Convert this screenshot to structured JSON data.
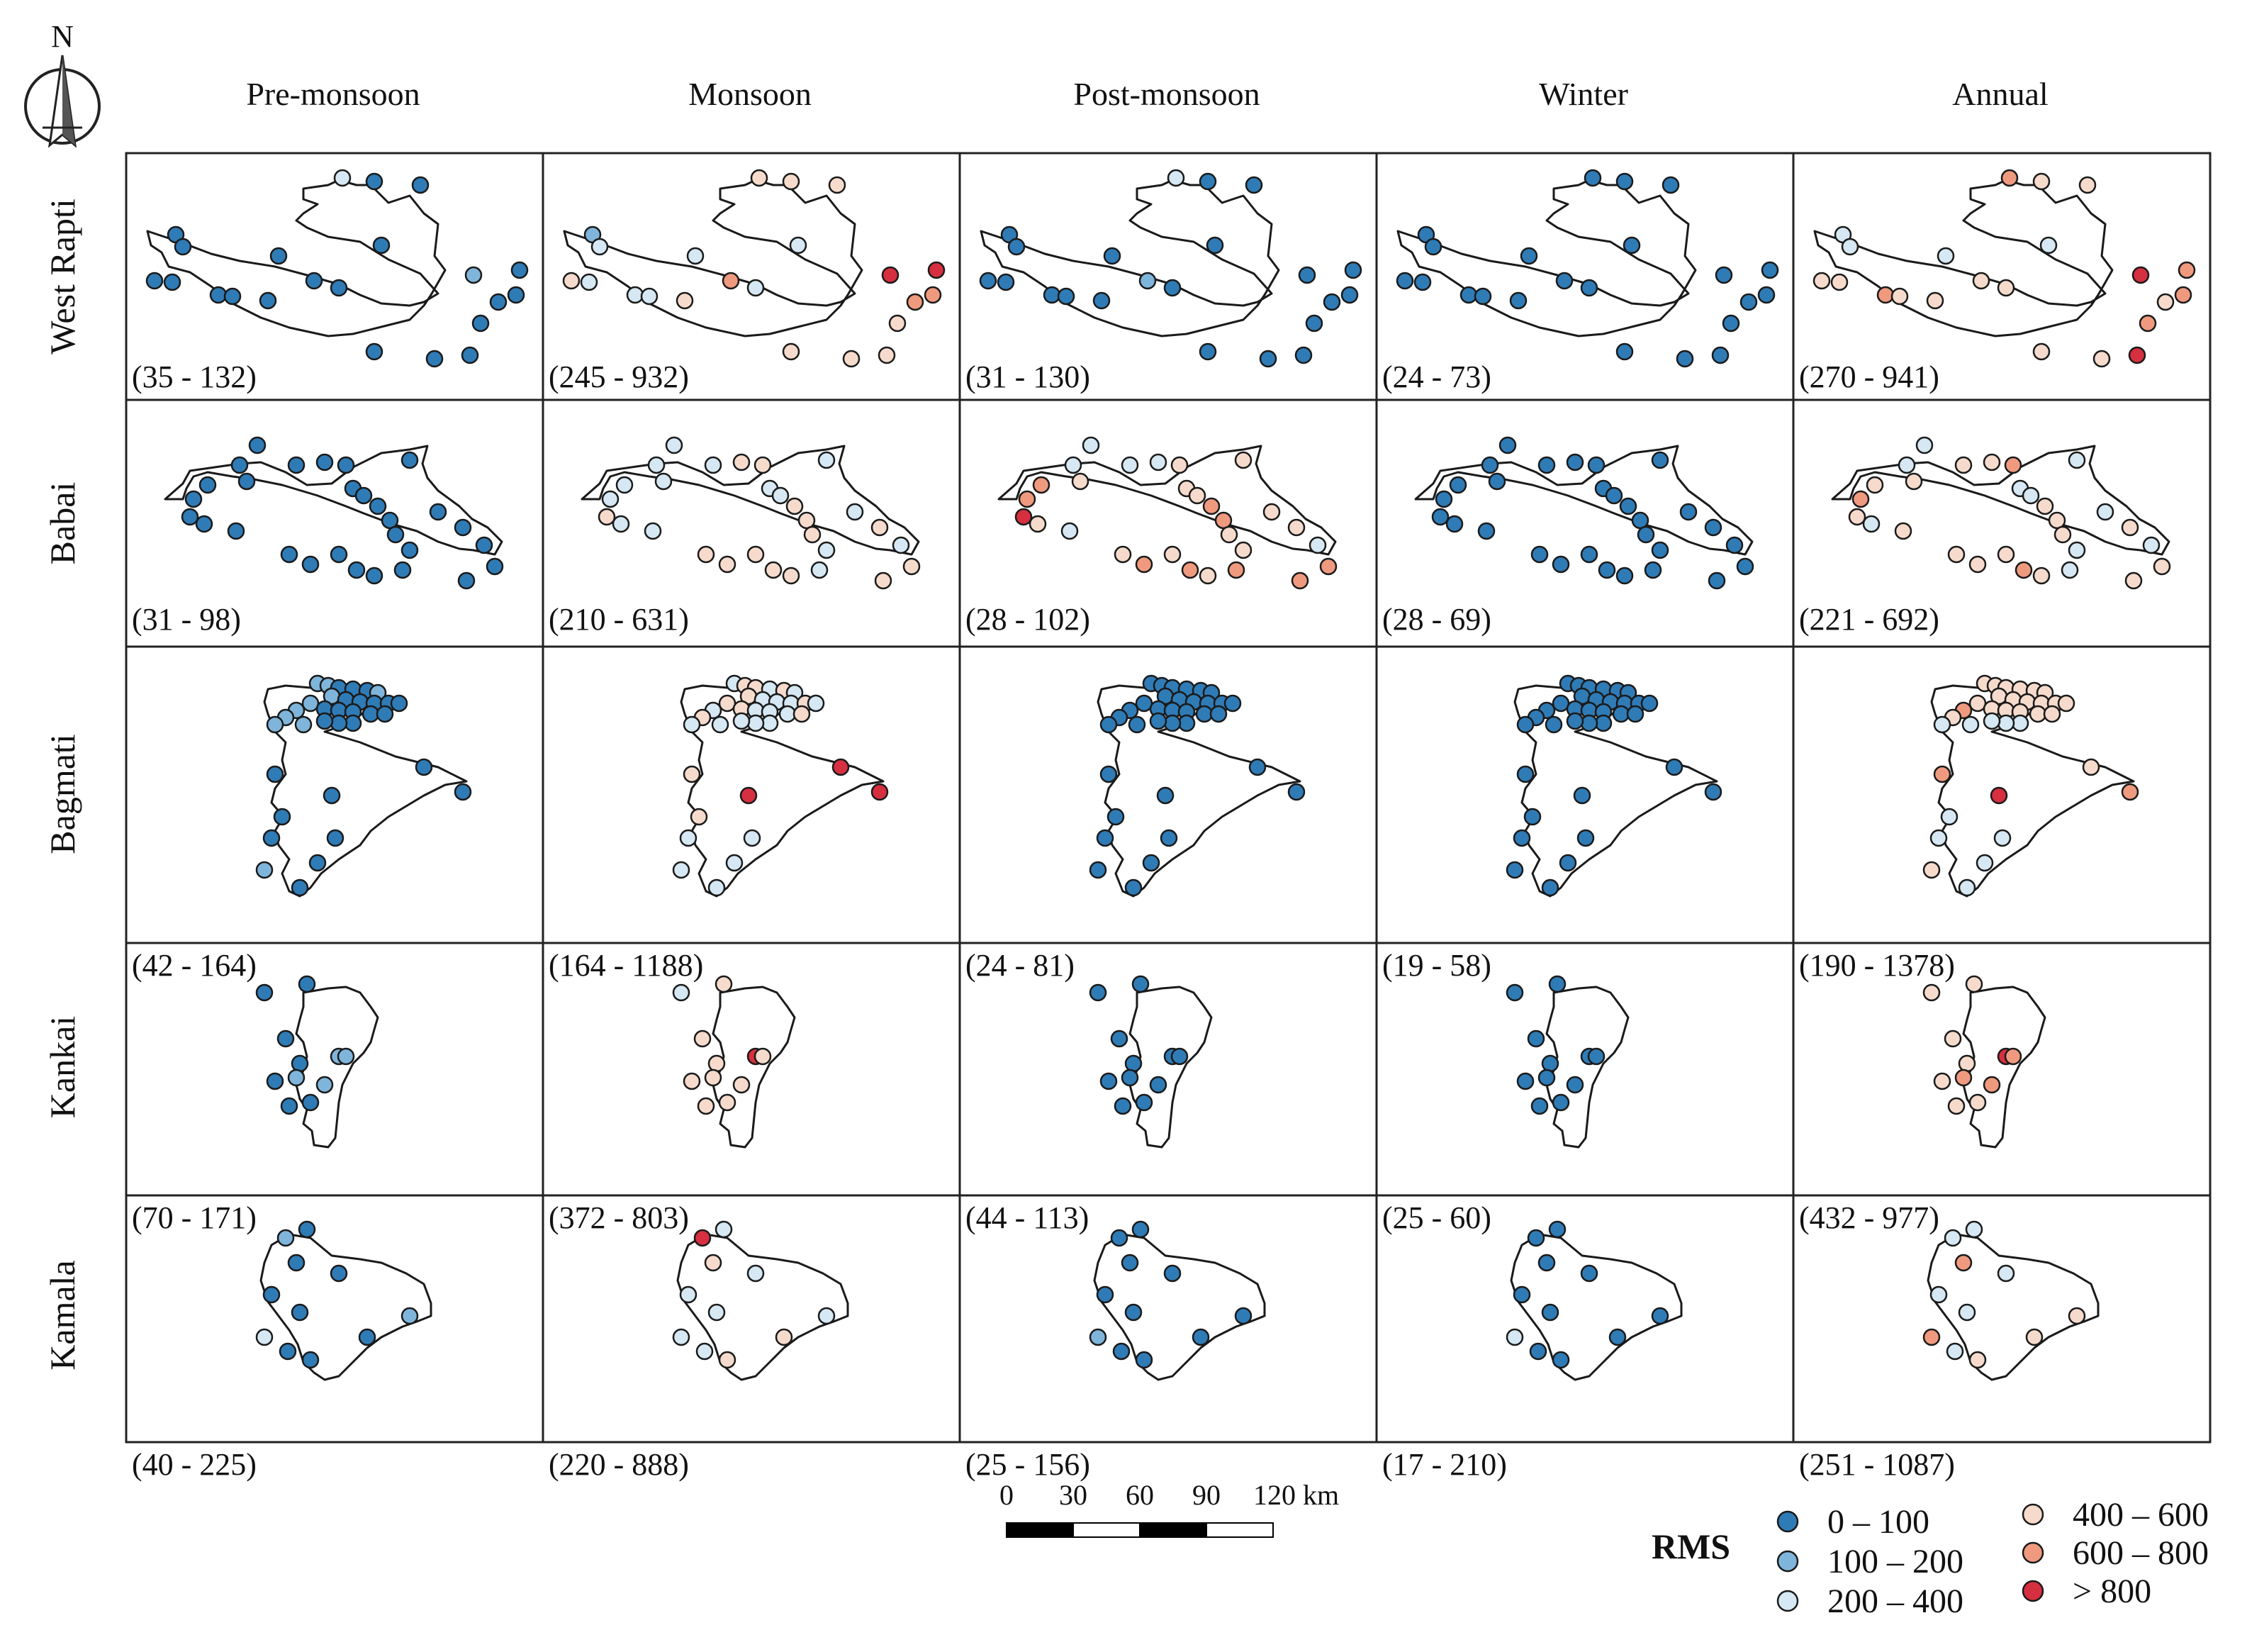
{
  "north_label": "N",
  "seasons": [
    "Pre-monsoon",
    "Monsoon",
    "Post-monsoon",
    "Winter",
    "Annual"
  ],
  "basins": [
    {
      "name": "West Rapti",
      "ranges": [
        "(35 - 132)",
        "(245 - 932)",
        "(31 - 130)",
        "(24 - 73)",
        "(270 - 941)"
      ]
    },
    {
      "name": "Babai",
      "ranges": [
        "(31 - 98)",
        "(210 - 631)",
        "(28 - 102)",
        "(28 - 69)",
        "(221 - 692)"
      ]
    },
    {
      "name": "Bagmati",
      "ranges": [
        "(42 - 164)",
        "(164 - 1188)",
        "(24 - 81)",
        "(19 - 58)",
        "(190 - 1378)"
      ]
    },
    {
      "name": "Kankai",
      "ranges": [
        "(70 - 171)",
        "(372 - 803)",
        "(44 - 113)",
        "(25 - 60)",
        "(432 - 977)"
      ]
    },
    {
      "name": "Kamala",
      "ranges": [
        "(40 - 225)",
        "(220 - 888)",
        "(25 - 156)",
        "(17 - 210)",
        "(251 - 1087)"
      ]
    }
  ],
  "scale_bar": {
    "labels": [
      "0",
      "30",
      "60",
      "90",
      "120 km"
    ]
  },
  "legend": {
    "title": "RMS",
    "classes": [
      {
        "label": "0 – 100",
        "color": "#2f7bb6"
      },
      {
        "label": "100 – 200",
        "color": "#7fb5db"
      },
      {
        "label": "200 – 400",
        "color": "#d5e8f3"
      },
      {
        "label": "400 – 600",
        "color": "#f6dbcc"
      },
      {
        "label": "600 – 800",
        "color": "#ef9a7f"
      },
      {
        "label": "> 800",
        "color": "#d62f3f"
      }
    ]
  }
}
